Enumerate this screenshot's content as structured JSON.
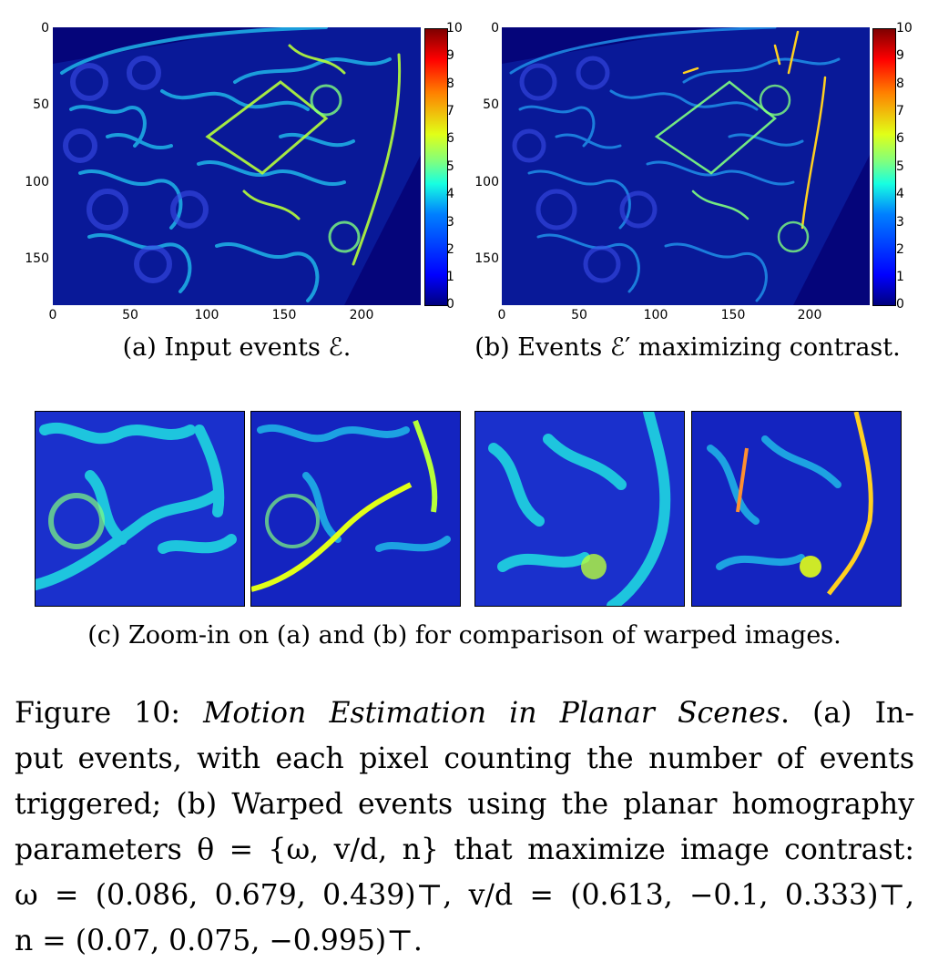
{
  "panel_a": {
    "caption": "(a) Input events ℰ.",
    "y_ticks": [
      "0",
      "50",
      "100",
      "150"
    ],
    "x_ticks": [
      "0",
      "50",
      "100",
      "150",
      "200"
    ],
    "colorbar_ticks": [
      "10",
      "9",
      "8",
      "7",
      "6",
      "5",
      "4",
      "3",
      "2",
      "1",
      "0"
    ]
  },
  "panel_b": {
    "caption": "(b) Events ℰ′ maximizing contrast.",
    "y_ticks": [
      "0",
      "50",
      "100",
      "150"
    ],
    "x_ticks": [
      "0",
      "50",
      "100",
      "150",
      "200"
    ],
    "colorbar_ticks": [
      "10",
      "9",
      "8",
      "7",
      "6",
      "5",
      "4",
      "3",
      "2",
      "1",
      "0"
    ]
  },
  "panel_c": {
    "caption": "(c) Zoom-in on (a) and (b) for comparison of warped images."
  },
  "colormap": {
    "low": "#00007f",
    "mid": "#17ffe1",
    "high": "#7f0000",
    "background": "#05057a"
  },
  "figure_caption": {
    "line1_a": "Figure 10: ",
    "line1_b": "Motion Estimation in Planar Scenes",
    "line1_c": ".  (a) In-",
    "line2": "put events, with each pixel counting the number of events",
    "line3": "triggered; (b) Warped events using the planar homography",
    "line4": "parameters θ = {ω, v/d, n} that maximize image contrast:",
    "line5": "ω = (0.086, 0.679, 0.439)⊤, v/d = (0.613, −0.1, 0.333)⊤,",
    "line6": "n = (0.07, 0.075, −0.995)⊤."
  }
}
